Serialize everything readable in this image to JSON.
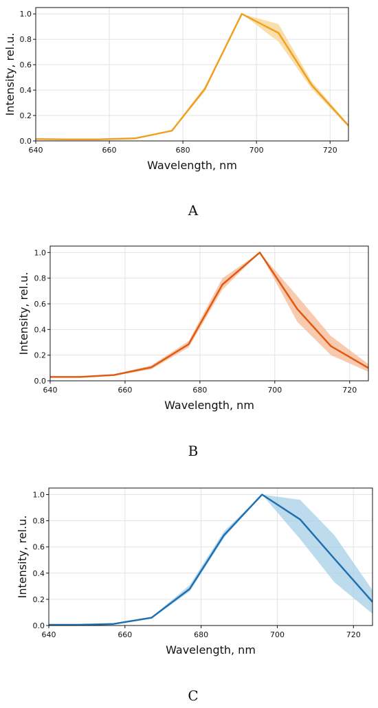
{
  "chart_data": [
    {
      "type": "line",
      "panel_label": "A",
      "xlabel": "Wavelength, nm",
      "ylabel": "Intensity, rel.u.",
      "xlim": [
        640,
        725
      ],
      "ylim": [
        0,
        1.05
      ],
      "xticks": [
        640,
        660,
        680,
        700,
        720
      ],
      "yticks": [
        0.0,
        0.2,
        0.4,
        0.6,
        0.8,
        1.0
      ],
      "ytick_labels": [
        "0.0",
        "0.2",
        "0.4",
        "0.6",
        "0.8",
        "1.0"
      ],
      "grid": true,
      "series": [
        {
          "color": "#f0a020",
          "band_color": "#f7d68e",
          "x": [
            640,
            648,
            657,
            667,
            677,
            686,
            696,
            706,
            715,
            725
          ],
          "y": [
            0.015,
            0.012,
            0.012,
            0.02,
            0.08,
            0.41,
            1.0,
            0.85,
            0.44,
            0.12
          ],
          "y_lower": [
            0.01,
            0.008,
            0.008,
            0.015,
            0.075,
            0.39,
            1.0,
            0.78,
            0.41,
            0.11
          ],
          "y_upper": [
            0.02,
            0.016,
            0.016,
            0.025,
            0.085,
            0.43,
            1.0,
            0.92,
            0.47,
            0.13
          ]
        }
      ]
    },
    {
      "type": "line",
      "panel_label": "B",
      "xlabel": "Wavelength, nm",
      "ylabel": "Intensity, rel.u.",
      "xlim": [
        640,
        725
      ],
      "ylim": [
        0,
        1.05
      ],
      "xticks": [
        640,
        660,
        680,
        700,
        720
      ],
      "yticks": [
        0.0,
        0.2,
        0.4,
        0.6,
        0.8,
        1.0
      ],
      "ytick_labels": [
        "0.0",
        "0.2",
        "0.4",
        "0.6",
        "0.8",
        "1.0"
      ],
      "grid": true,
      "series": [
        {
          "color": "#e05a10",
          "band_color": "#f5b995",
          "x": [
            640,
            648,
            657,
            667,
            677,
            686,
            696,
            706,
            715,
            725
          ],
          "y": [
            0.03,
            0.03,
            0.045,
            0.105,
            0.285,
            0.75,
            1.0,
            0.56,
            0.27,
            0.1
          ],
          "y_lower": [
            0.025,
            0.025,
            0.04,
            0.09,
            0.26,
            0.71,
            1.0,
            0.46,
            0.2,
            0.07
          ],
          "y_upper": [
            0.035,
            0.035,
            0.05,
            0.12,
            0.31,
            0.8,
            1.0,
            0.66,
            0.35,
            0.13
          ]
        }
      ]
    },
    {
      "type": "line",
      "panel_label": "C",
      "xlabel": "Wavelength, nm",
      "ylabel": "Intensity, rel.u.",
      "xlim": [
        640,
        725
      ],
      "ylim": [
        0,
        1.05
      ],
      "xticks": [
        640,
        660,
        680,
        700,
        720
      ],
      "yticks": [
        0.0,
        0.2,
        0.4,
        0.6,
        0.8,
        1.0
      ],
      "ytick_labels": [
        "0.0",
        "0.2",
        "0.4",
        "0.6",
        "0.8",
        "1.0"
      ],
      "grid": true,
      "series": [
        {
          "color": "#1f6fb0",
          "band_color": "#a6d0e8",
          "x": [
            640,
            648,
            657,
            667,
            677,
            686,
            696,
            706,
            715,
            725
          ],
          "y": [
            0.005,
            0.005,
            0.012,
            0.06,
            0.28,
            0.69,
            1.0,
            0.81,
            0.51,
            0.18
          ],
          "y_lower": [
            0.003,
            0.003,
            0.009,
            0.055,
            0.26,
            0.67,
            1.0,
            0.66,
            0.33,
            0.09
          ],
          "y_upper": [
            0.007,
            0.007,
            0.015,
            0.065,
            0.31,
            0.72,
            1.0,
            0.96,
            0.69,
            0.27
          ]
        }
      ]
    }
  ]
}
